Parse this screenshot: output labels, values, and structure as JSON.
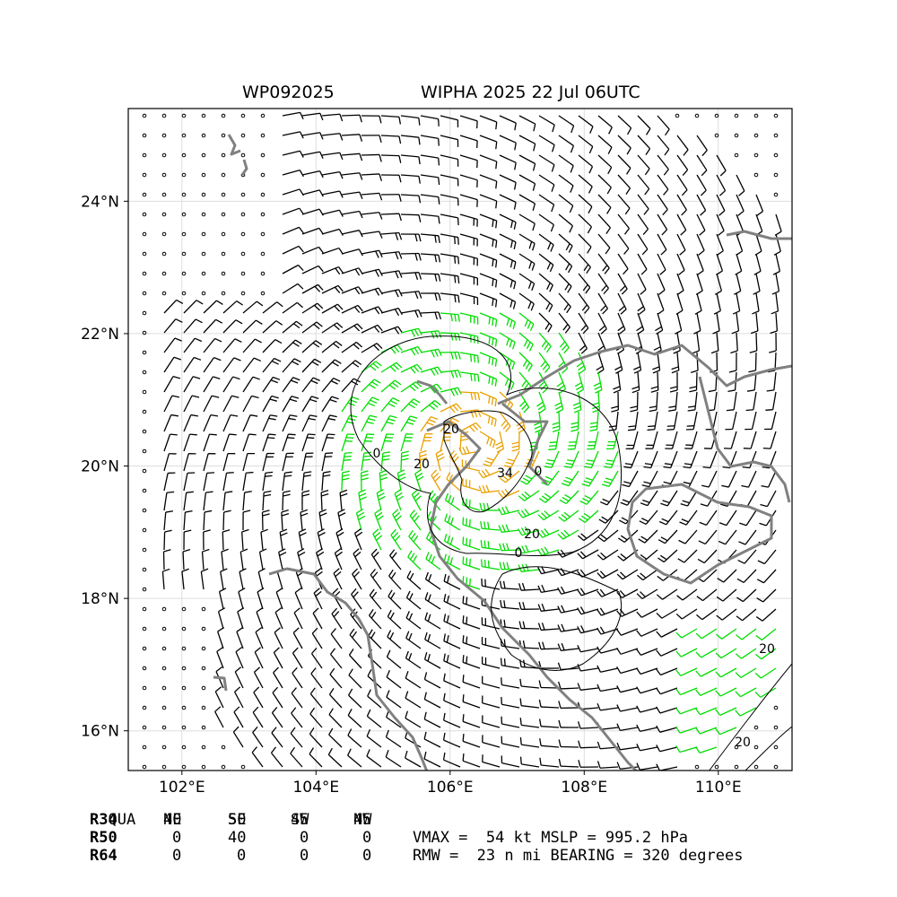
{
  "header": {
    "storm_id": "WP092025",
    "storm_title": "WIPHA 2025 22 Jul 06UTC"
  },
  "map": {
    "lon_range": [
      101.2,
      111.1
    ],
    "lat_range": [
      15.4,
      25.4
    ],
    "lon_ticks": [
      "102°E",
      "104°E",
      "106°E",
      "108°E",
      "110°E"
    ],
    "lat_ticks": [
      "16°N",
      "18°N",
      "20°N",
      "22°N",
      "24°N"
    ],
    "lon_tick_values": [
      102,
      104,
      106,
      108,
      110
    ],
    "lat_tick_values": [
      16,
      18,
      20,
      22,
      24
    ],
    "storm_center": {
      "lon": 106.4,
      "lat": 20.3
    },
    "contour_labels": [
      "0",
      "20",
      "34",
      "20",
      "0",
      "20",
      "20",
      "0",
      "20"
    ],
    "colors": {
      "calm": "#000000",
      "wind_barb": "#000000",
      "gale_barb": "#00dd00",
      "storm_barb": "#e8a000",
      "coastline": "#808080",
      "contour": "#000000",
      "grid": "#dddddd"
    }
  },
  "radii_table": {
    "columns": [
      "QUA",
      "NE",
      "SE",
      "SW",
      "NW"
    ],
    "rows": [
      {
        "label": "R34",
        "values": [
          "40",
          "50",
          "45",
          "45"
        ]
      },
      {
        "label": "R50",
        "values": [
          "0",
          "40",
          "0",
          "0"
        ]
      },
      {
        "label": "R64",
        "values": [
          "0",
          "0",
          "0",
          "0"
        ]
      }
    ]
  },
  "summary": {
    "line1": "VMAX =  54 kt MSLP = 995.2 hPa",
    "line2": "RMW =  23 n mi BEARING = 320 degrees"
  }
}
